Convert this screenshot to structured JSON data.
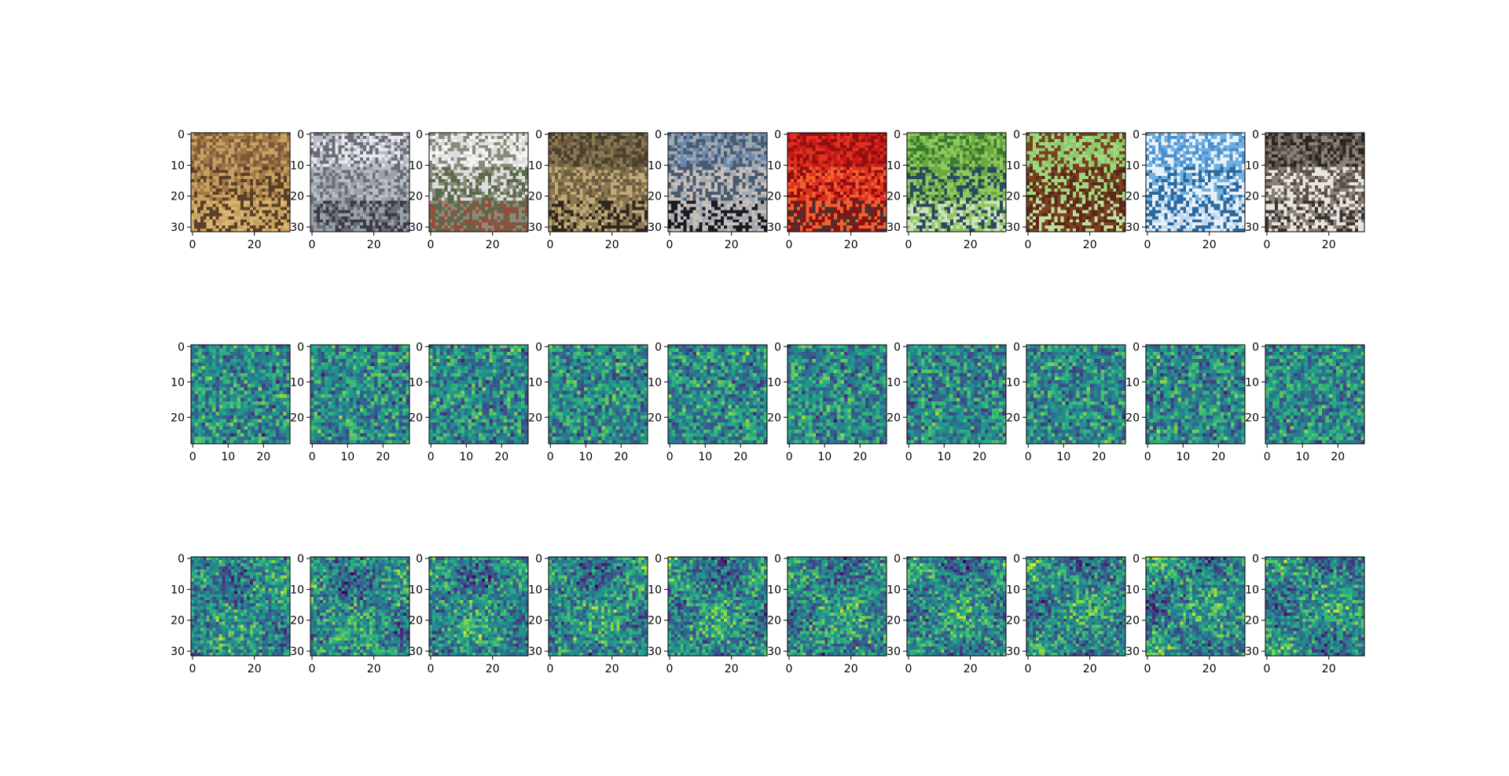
{
  "chart_data": [
    {
      "type": "heatmap",
      "row": "original-images",
      "grid": false,
      "image_shape": [
        32,
        32
      ],
      "colormap": "rgb",
      "xlim": [
        -0.5,
        31.5
      ],
      "ylim": [
        31.5,
        -0.5
      ],
      "xticks": [
        0,
        20
      ],
      "yticks": [
        0,
        10,
        20,
        30
      ],
      "panels": [
        {
          "palette": [
            "#7a5a3a",
            "#a07848",
            "#c8a060",
            "#5a4028",
            "#d8b870",
            "#8a6a30"
          ]
        },
        {
          "palette": [
            "#e8e8ec",
            "#b8bcc4",
            "#6a6e78",
            "#9aa0a8",
            "#3a3c44",
            "#d8c8b0"
          ]
        },
        {
          "palette": [
            "#f4f4f4",
            "#dcdcdc",
            "#8a8a7a",
            "#5a6a4a",
            "#a04838",
            "#3a3a38"
          ]
        },
        {
          "palette": [
            "#4a4030",
            "#6a5a40",
            "#8a7850",
            "#c0a878",
            "#2e2820",
            "#7a6a48"
          ]
        },
        {
          "palette": [
            "#6a88b0",
            "#4a5a70",
            "#a0a8b0",
            "#c8c0b8",
            "#1a1a20",
            "#707880"
          ]
        },
        {
          "palette": [
            "#c81818",
            "#e03020",
            "#901010",
            "#f06030",
            "#4a3030",
            "#d8d0c8"
          ]
        },
        {
          "palette": [
            "#3a7a30",
            "#6aa840",
            "#90c860",
            "#2a4a60",
            "#d0e0c0",
            "#507838"
          ]
        },
        {
          "palette": [
            "#8ac868",
            "#a0d880",
            "#7a4020",
            "#5a2818",
            "#c0e0a0",
            "#9a5830"
          ]
        },
        {
          "palette": [
            "#4a90d0",
            "#70b0e0",
            "#e8f0f8",
            "#2a6aa0",
            "#c0d8ec",
            "#90c0e8"
          ]
        },
        {
          "palette": [
            "#2a2820",
            "#5a5048",
            "#8a8078",
            "#e8e4e0",
            "#3a3430",
            "#c0b8b0"
          ]
        }
      ]
    },
    {
      "type": "heatmap",
      "row": "noise-maps",
      "grid": false,
      "image_shape": [
        28,
        28
      ],
      "colormap": "viridis",
      "xlim": [
        -0.5,
        27.5
      ],
      "ylim": [
        27.5,
        -0.5
      ],
      "xticks": [
        0,
        10,
        20
      ],
      "yticks": [
        0,
        10,
        20
      ],
      "panels": [
        {
          "seed": 11
        },
        {
          "seed": 12
        },
        {
          "seed": 13
        },
        {
          "seed": 14
        },
        {
          "seed": 15
        },
        {
          "seed": 16
        },
        {
          "seed": 17
        },
        {
          "seed": 18
        },
        {
          "seed": 19
        },
        {
          "seed": 20
        }
      ]
    },
    {
      "type": "heatmap",
      "row": "reconstructions",
      "grid": false,
      "image_shape": [
        32,
        32
      ],
      "colormap": "viridis",
      "xlim": [
        -0.5,
        31.5
      ],
      "ylim": [
        31.5,
        -0.5
      ],
      "xticks": [
        0,
        20
      ],
      "yticks": [
        0,
        10,
        20,
        30
      ],
      "panels": [
        {
          "seed": 31
        },
        {
          "seed": 32
        },
        {
          "seed": 33
        },
        {
          "seed": 34
        },
        {
          "seed": 35
        },
        {
          "seed": 36
        },
        {
          "seed": 37
        },
        {
          "seed": 38
        },
        {
          "seed": 39
        },
        {
          "seed": 40
        }
      ]
    }
  ]
}
